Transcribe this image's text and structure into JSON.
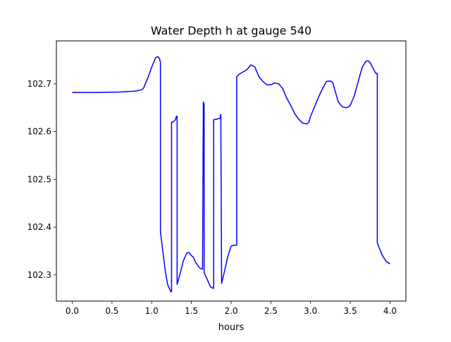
{
  "chart_data": {
    "type": "line",
    "title": "Water Depth h at gauge 540",
    "xlabel": "hours",
    "ylabel": "",
    "xlim": [
      -0.2,
      4.2
    ],
    "ylim": [
      102.245,
      102.79
    ],
    "x_ticks": [
      0.0,
      0.5,
      1.0,
      1.5,
      2.0,
      2.5,
      3.0,
      3.5,
      4.0
    ],
    "x_tick_labels": [
      "0.0",
      "0.5",
      "1.0",
      "1.5",
      "2.0",
      "2.5",
      "3.0",
      "3.5",
      "4.0"
    ],
    "y_ticks": [
      102.3,
      102.4,
      102.5,
      102.6,
      102.7
    ],
    "y_tick_labels": [
      "102.3",
      "102.4",
      "102.5",
      "102.6",
      "102.7"
    ],
    "grid": false,
    "legend": "none",
    "series": [
      {
        "color": "#0000ff",
        "x": [
          0.0,
          0.3,
          0.6,
          0.8,
          0.88,
          0.9,
          0.95,
          1.0,
          1.05,
          1.08,
          1.1,
          1.11,
          1.11,
          1.14,
          1.17,
          1.2,
          1.24,
          1.25,
          1.25,
          1.27,
          1.3,
          1.31,
          1.32,
          1.32,
          1.35,
          1.4,
          1.44,
          1.46,
          1.48,
          1.5,
          1.52,
          1.55,
          1.6,
          1.63,
          1.64,
          1.65,
          1.65,
          1.66,
          1.66,
          1.7,
          1.74,
          1.77,
          1.78,
          1.78,
          1.82,
          1.86,
          1.87,
          1.87,
          1.88,
          1.92,
          1.96,
          2.0,
          2.03,
          2.06,
          2.07,
          2.07,
          2.1,
          2.15,
          2.2,
          2.25,
          2.3,
          2.35,
          2.4,
          2.45,
          2.5,
          2.55,
          2.6,
          2.65,
          2.7,
          2.75,
          2.8,
          2.85,
          2.9,
          2.95,
          2.98,
          3.0,
          3.05,
          3.1,
          3.15,
          3.2,
          3.25,
          3.28,
          3.3,
          3.35,
          3.4,
          3.45,
          3.48,
          3.5,
          3.55,
          3.6,
          3.65,
          3.7,
          3.73,
          3.75,
          3.78,
          3.82,
          3.84,
          3.84,
          3.86,
          3.9,
          3.95,
          4.0
        ],
        "y": [
          102.682,
          102.682,
          102.683,
          102.685,
          102.688,
          102.692,
          102.712,
          102.735,
          102.755,
          102.757,
          102.752,
          102.745,
          102.39,
          102.35,
          102.31,
          102.28,
          102.265,
          102.265,
          102.62,
          102.62,
          102.625,
          102.632,
          102.632,
          102.28,
          102.298,
          102.33,
          102.345,
          102.347,
          102.345,
          102.34,
          102.338,
          102.327,
          102.315,
          102.312,
          102.312,
          102.662,
          102.662,
          102.657,
          102.305,
          102.29,
          102.275,
          102.272,
          102.272,
          102.625,
          102.626,
          102.628,
          102.636,
          102.636,
          102.282,
          102.31,
          102.34,
          102.36,
          102.362,
          102.362,
          102.362,
          102.715,
          102.72,
          102.725,
          102.73,
          102.74,
          102.735,
          102.715,
          102.705,
          102.698,
          102.698,
          102.702,
          102.7,
          102.69,
          102.67,
          102.655,
          102.638,
          102.626,
          102.618,
          102.616,
          102.62,
          102.632,
          102.652,
          102.672,
          102.69,
          102.705,
          102.706,
          102.702,
          102.69,
          102.662,
          102.652,
          102.65,
          102.652,
          102.655,
          102.675,
          102.705,
          102.735,
          102.748,
          102.748,
          102.744,
          102.735,
          102.722,
          102.722,
          102.368,
          102.358,
          102.342,
          102.328,
          102.323
        ]
      }
    ]
  }
}
